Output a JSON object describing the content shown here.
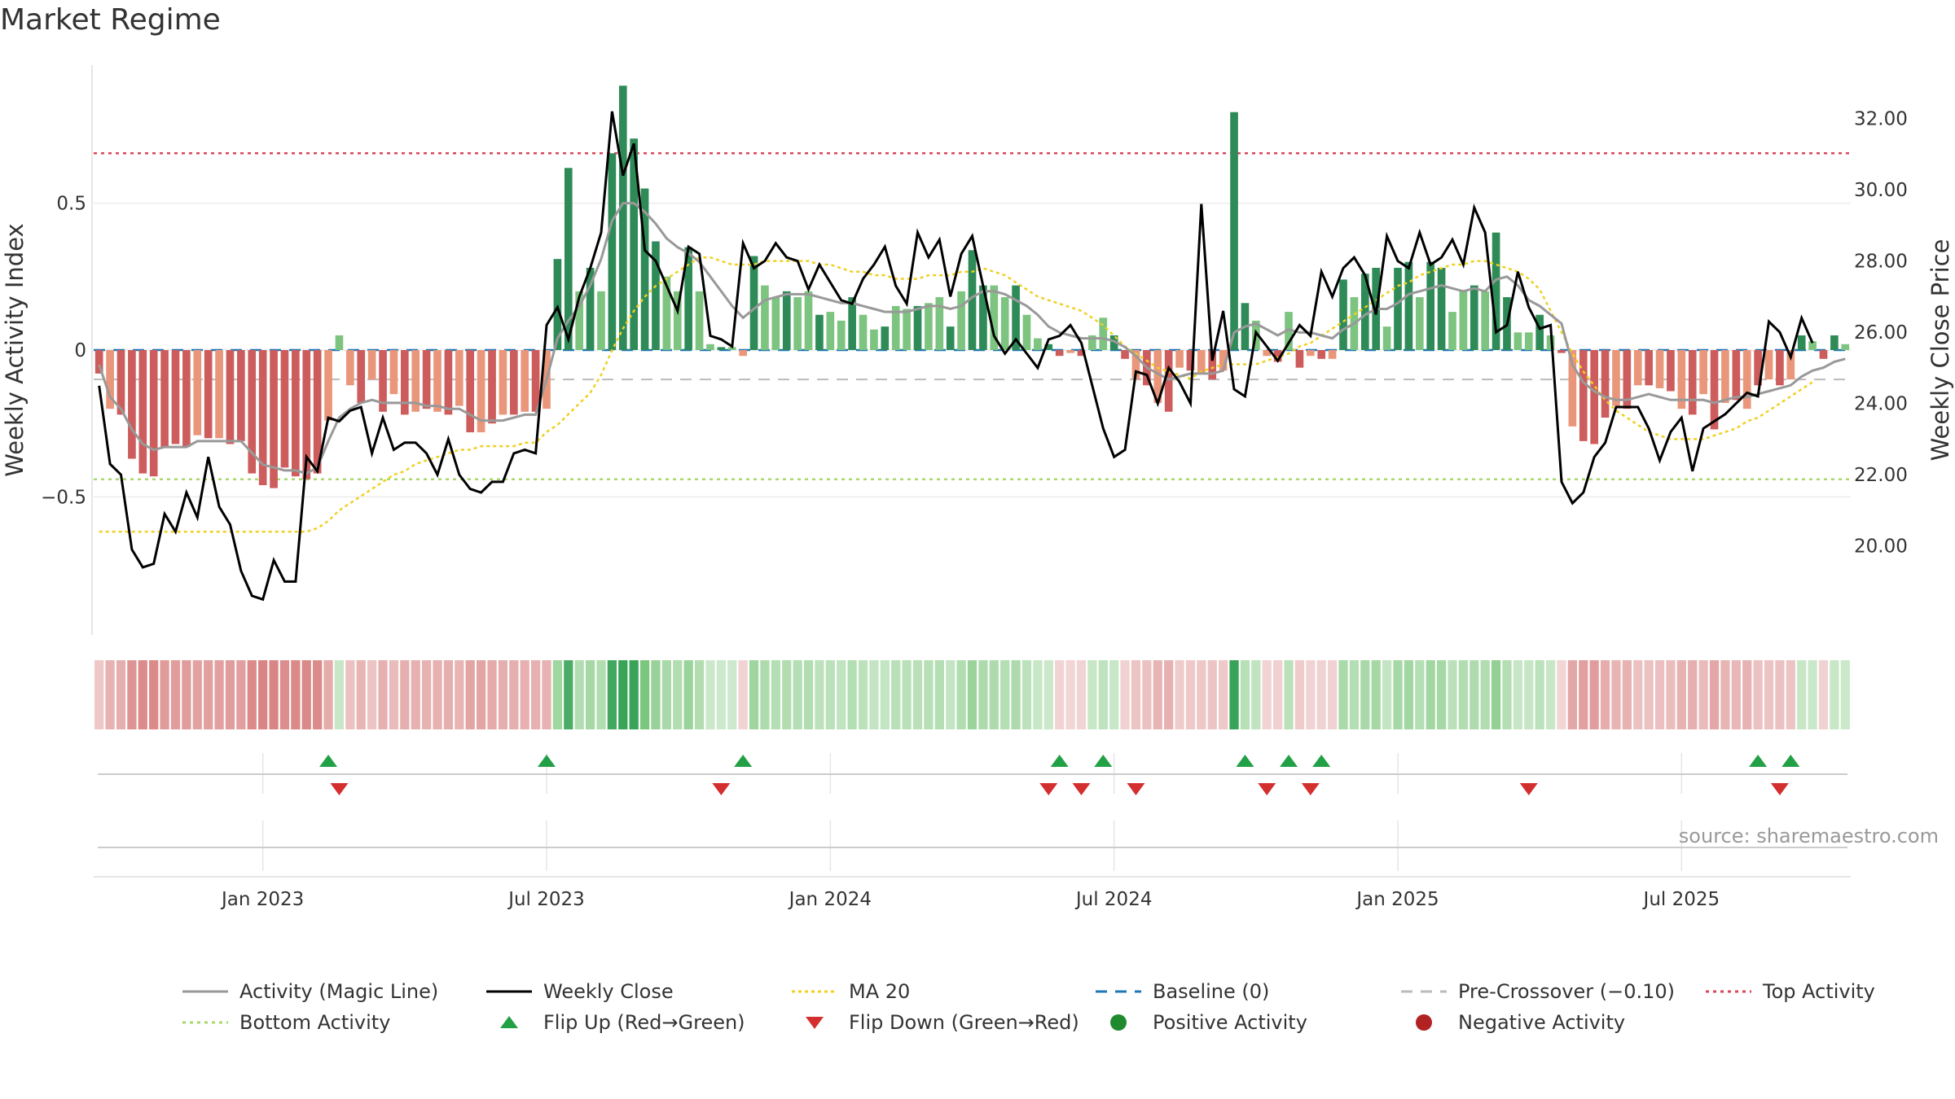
{
  "title": "Market Regime",
  "source": "source: sharemaestro.com",
  "colors": {
    "strong_green": "#2e8b57",
    "light_green": "#7cc47f",
    "strong_red": "#cd5c5c",
    "light_red": "#e9967a",
    "magic_line": "#999999",
    "close_line": "#000000",
    "ma20": "#f0d020",
    "baseline": "#1f77b4",
    "pre_crossover": "#bbbbbb",
    "top_activity": "#d9475e",
    "bottom_activity": "#a8d86e",
    "flip_up": "#22a045",
    "flip_down": "#d32f2f"
  },
  "chart_data": {
    "type": "bar",
    "title": "Market Regime",
    "ylabel_left": "Weekly Activity Index",
    "ylabel_right": "Weekly Close Price",
    "x_ticks": [
      "Jan 2023",
      "Jul 2023",
      "Jan 2024",
      "Jul 2024",
      "Jan 2025",
      "Jul 2025"
    ],
    "y_left_ticks": [
      "0.5",
      "0",
      "−0.5"
    ],
    "y_left_tick_values": [
      0.5,
      0,
      -0.5
    ],
    "y_right_ticks": [
      "32.00",
      "30.00",
      "28.00",
      "26.00",
      "24.00",
      "22.00",
      "20.00"
    ],
    "y_right_tick_values": [
      32,
      30,
      28,
      26,
      24,
      22,
      20
    ],
    "ylim_left": [
      -0.97,
      0.97
    ],
    "ylim_right": [
      17.5,
      33.5
    ],
    "reference_lines": {
      "top_activity": 0.67,
      "bottom_activity": -0.44,
      "pre_crossover": -0.1,
      "baseline": 0
    },
    "activity_values": [
      -0.08,
      -0.2,
      -0.22,
      -0.37,
      -0.42,
      -0.43,
      -0.33,
      -0.32,
      -0.33,
      -0.29,
      -0.3,
      -0.3,
      -0.32,
      -0.31,
      -0.42,
      -0.46,
      -0.47,
      -0.4,
      -0.43,
      -0.44,
      -0.42,
      -0.24,
      0.05,
      -0.12,
      -0.18,
      -0.1,
      -0.21,
      -0.15,
      -0.22,
      -0.21,
      -0.2,
      -0.21,
      -0.22,
      -0.19,
      -0.28,
      -0.28,
      -0.25,
      -0.22,
      -0.22,
      -0.21,
      -0.21,
      -0.2,
      0.31,
      0.62,
      0.2,
      0.28,
      0.2,
      0.67,
      0.9,
      0.72,
      0.55,
      0.37,
      0.25,
      0.2,
      0.35,
      0.2,
      0.02,
      0.01,
      0.01,
      -0.02,
      0.32,
      0.22,
      0.18,
      0.2,
      0.18,
      0.2,
      0.12,
      0.13,
      0.1,
      0.18,
      0.12,
      0.07,
      0.08,
      0.15,
      0.14,
      0.15,
      0.16,
      0.18,
      0.08,
      0.2,
      0.34,
      0.22,
      0.22,
      0.18,
      0.22,
      0.12,
      0.04,
      0.02,
      -0.02,
      -0.01,
      -0.02,
      0.05,
      0.11,
      0.05,
      -0.03,
      -0.1,
      -0.12,
      -0.18,
      -0.21,
      -0.06,
      -0.07,
      -0.08,
      -0.1,
      -0.07,
      0.81,
      0.16,
      0.1,
      -0.02,
      -0.04,
      0.13,
      -0.06,
      -0.02,
      -0.03,
      -0.03,
      0.24,
      0.18,
      0.26,
      0.28,
      0.08,
      0.28,
      0.3,
      0.18,
      0.3,
      0.28,
      0.13,
      0.2,
      0.22,
      0.2,
      0.4,
      0.18,
      0.06,
      0.06,
      0.12,
      0.05,
      -0.01,
      -0.26,
      -0.31,
      -0.32,
      -0.23,
      -0.19,
      -0.2,
      -0.12,
      -0.12,
      -0.13,
      -0.14,
      -0.2,
      -0.22,
      -0.15,
      -0.27,
      -0.18,
      -0.17,
      -0.2,
      -0.12,
      -0.1,
      -0.12,
      -0.1,
      0.05,
      0.03,
      -0.03,
      0.05,
      0.02
    ],
    "close_values": [
      24.5,
      22.3,
      22.0,
      19.9,
      19.4,
      19.5,
      20.9,
      20.4,
      21.5,
      20.8,
      22.5,
      21.1,
      20.6,
      19.3,
      18.6,
      18.5,
      19.6,
      19.0,
      19.0,
      22.5,
      22.1,
      23.6,
      23.5,
      23.8,
      23.9,
      22.6,
      23.6,
      22.7,
      22.9,
      22.9,
      22.6,
      22.0,
      23.0,
      22.0,
      21.6,
      21.5,
      21.8,
      21.8,
      22.6,
      22.7,
      22.6,
      26.2,
      26.7,
      25.8,
      27.0,
      27.8,
      28.8,
      32.2,
      30.4,
      31.3,
      28.3,
      28.0,
      27.3,
      26.6,
      28.4,
      28.2,
      25.9,
      25.8,
      25.6,
      28.5,
      27.8,
      28.0,
      28.5,
      28.1,
      28.0,
      27.2,
      27.9,
      27.4,
      26.9,
      26.8,
      27.5,
      27.9,
      28.4,
      27.3,
      26.8,
      28.8,
      28.1,
      28.6,
      27.0,
      28.2,
      28.7,
      27.3,
      25.9,
      25.4,
      25.8,
      25.4,
      25.0,
      25.8,
      25.9,
      26.2,
      25.7,
      24.5,
      23.3,
      22.5,
      22.7,
      24.9,
      24.8,
      24.0,
      25.0,
      24.6,
      24.0,
      29.6,
      25.2,
      26.6,
      24.4,
      24.2,
      26.0,
      25.6,
      25.2,
      25.7,
      26.2,
      25.9,
      27.7,
      27.0,
      27.8,
      28.1,
      27.6,
      26.5,
      28.7,
      28.0,
      27.8,
      28.8,
      27.9,
      28.1,
      28.6,
      27.9,
      29.5,
      28.8,
      26.0,
      26.2,
      27.7,
      26.7,
      26.1,
      26.2,
      21.8,
      21.2,
      21.5,
      22.5,
      22.9,
      23.9,
      23.9,
      23.9,
      23.3,
      22.4,
      23.2,
      23.6,
      22.1,
      23.3,
      23.5,
      23.7,
      24.0,
      24.3,
      24.2,
      26.3,
      26.0,
      25.3,
      26.4,
      25.7
    ],
    "magic_line_values": [
      -0.05,
      -0.16,
      -0.2,
      -0.27,
      -0.32,
      -0.34,
      -0.33,
      -0.33,
      -0.33,
      -0.31,
      -0.31,
      -0.31,
      -0.31,
      -0.31,
      -0.35,
      -0.39,
      -0.4,
      -0.41,
      -0.41,
      -0.42,
      -0.4,
      -0.31,
      -0.23,
      -0.2,
      -0.18,
      -0.17,
      -0.18,
      -0.18,
      -0.18,
      -0.18,
      -0.19,
      -0.19,
      -0.2,
      -0.2,
      -0.22,
      -0.24,
      -0.24,
      -0.24,
      -0.23,
      -0.22,
      -0.22,
      -0.1,
      0.04,
      0.1,
      0.15,
      0.22,
      0.31,
      0.44,
      0.5,
      0.5,
      0.47,
      0.43,
      0.38,
      0.35,
      0.33,
      0.3,
      0.25,
      0.2,
      0.15,
      0.11,
      0.14,
      0.17,
      0.18,
      0.19,
      0.19,
      0.19,
      0.18,
      0.17,
      0.16,
      0.16,
      0.15,
      0.14,
      0.13,
      0.13,
      0.13,
      0.14,
      0.15,
      0.15,
      0.14,
      0.15,
      0.18,
      0.2,
      0.2,
      0.19,
      0.17,
      0.15,
      0.12,
      0.08,
      0.06,
      0.05,
      0.04,
      0.04,
      0.04,
      0.03,
      0.01,
      -0.02,
      -0.06,
      -0.08,
      -0.1,
      -0.09,
      -0.08,
      -0.08,
      -0.08,
      -0.07,
      0.06,
      0.08,
      0.09,
      0.07,
      0.05,
      0.07,
      0.06,
      0.06,
      0.05,
      0.04,
      0.07,
      0.09,
      0.12,
      0.14,
      0.14,
      0.16,
      0.19,
      0.2,
      0.21,
      0.22,
      0.21,
      0.2,
      0.21,
      0.2,
      0.24,
      0.25,
      0.22,
      0.17,
      0.15,
      0.12,
      0.09,
      -0.05,
      -0.11,
      -0.14,
      -0.16,
      -0.17,
      -0.17,
      -0.16,
      -0.15,
      -0.16,
      -0.17,
      -0.17,
      -0.17,
      -0.17,
      -0.18,
      -0.17,
      -0.16,
      -0.16,
      -0.15,
      -0.14,
      -0.13,
      -0.12,
      -0.09,
      -0.07,
      -0.06,
      -0.04,
      -0.03
    ],
    "ma20_values": [
      20.4,
      20.4,
      20.4,
      20.4,
      20.4,
      20.4,
      20.4,
      20.4,
      20.4,
      20.4,
      20.4,
      20.4,
      20.4,
      20.4,
      20.4,
      20.4,
      20.4,
      20.4,
      20.4,
      20.4,
      20.5,
      20.7,
      21.0,
      21.2,
      21.4,
      21.6,
      21.8,
      22.0,
      22.1,
      22.3,
      22.4,
      22.5,
      22.6,
      22.7,
      22.7,
      22.8,
      22.8,
      22.8,
      22.8,
      22.9,
      22.9,
      23.2,
      23.4,
      23.7,
      24.0,
      24.3,
      24.8,
      25.5,
      26.1,
      26.6,
      27.0,
      27.3,
      27.5,
      27.7,
      27.9,
      28.1,
      28.1,
      28.0,
      27.9,
      27.9,
      27.9,
      28.0,
      28.0,
      28.0,
      28.0,
      28.0,
      27.9,
      27.9,
      27.8,
      27.7,
      27.7,
      27.6,
      27.6,
      27.5,
      27.5,
      27.5,
      27.6,
      27.6,
      27.6,
      27.7,
      27.7,
      27.8,
      27.7,
      27.6,
      27.4,
      27.2,
      27.0,
      26.9,
      26.8,
      26.7,
      26.6,
      26.4,
      26.2,
      25.9,
      25.6,
      25.4,
      25.2,
      25.0,
      24.9,
      24.8,
      24.7,
      24.9,
      25.0,
      25.1,
      25.1,
      25.1,
      25.1,
      25.2,
      25.3,
      25.4,
      25.6,
      25.7,
      25.9,
      26.1,
      26.3,
      26.5,
      26.7,
      26.9,
      27.1,
      27.3,
      27.4,
      27.6,
      27.7,
      27.8,
      27.9,
      27.9,
      28.0,
      28.0,
      27.9,
      27.8,
      27.7,
      27.5,
      27.2,
      26.6,
      26.0,
      25.4,
      24.9,
      24.5,
      24.1,
      23.8,
      23.6,
      23.4,
      23.2,
      23.1,
      23.0,
      23.0,
      23.0,
      23.0,
      23.1,
      23.2,
      23.3,
      23.5,
      23.6,
      23.8,
      24.0,
      24.2,
      24.4,
      24.6
    ],
    "flip_up_weeks": [
      21,
      41,
      59,
      88,
      92,
      105,
      109,
      112,
      152,
      155
    ],
    "flip_down_weeks": [
      22,
      57,
      87,
      90,
      95,
      107,
      111,
      131,
      154
    ],
    "date_range_weeks": {
      "first_week_index": 0,
      "jan_2023": 15,
      "jul_2023": 41,
      "jan_2024": 67,
      "jul_2024": 93,
      "jan_2025": 119,
      "jul_2025": 145
    }
  },
  "legend": [
    {
      "label": "Activity (Magic Line)",
      "symbol": "line-grey"
    },
    {
      "label": "Weekly Close",
      "symbol": "line-black"
    },
    {
      "label": "MA 20",
      "symbol": "dotted-yellow"
    },
    {
      "label": "Baseline (0)",
      "symbol": "dashed-blue"
    },
    {
      "label": "Pre-Crossover (−0.10)",
      "symbol": "dashed-grey"
    },
    {
      "label": "Top Activity",
      "symbol": "dotted-red"
    },
    {
      "label": "Bottom Activity",
      "symbol": "dotted-lightgreen"
    },
    {
      "label": "Flip Up (Red→Green)",
      "symbol": "triangle-up-green"
    },
    {
      "label": "Flip Down (Green→Red)",
      "symbol": "triangle-down-red"
    },
    {
      "label": "Positive Activity",
      "symbol": "dot-green"
    },
    {
      "label": "Negative Activity",
      "symbol": "dot-red"
    }
  ]
}
